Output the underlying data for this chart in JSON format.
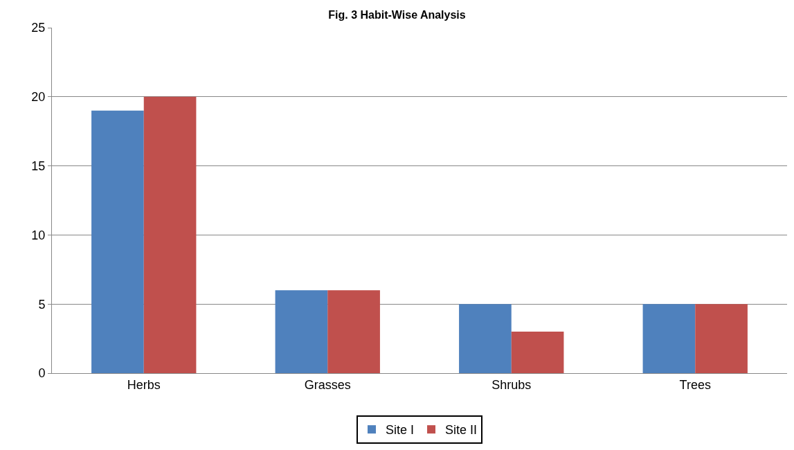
{
  "chart_data": {
    "type": "bar",
    "title": "Fig. 3 Habit-Wise Analysis",
    "categories": [
      "Herbs",
      "Grasses",
      "Shrubs",
      "Trees"
    ],
    "series": [
      {
        "name": "Site I",
        "color": "#4f81bd",
        "values": [
          19,
          6,
          5,
          5
        ]
      },
      {
        "name": "Site II",
        "color": "#c0504d",
        "values": [
          20,
          6,
          3,
          5
        ]
      }
    ],
    "ylim": [
      0,
      25
    ],
    "yticks": [
      0,
      5,
      10,
      15,
      20,
      25
    ],
    "grid": "y",
    "legend": "bottom"
  }
}
